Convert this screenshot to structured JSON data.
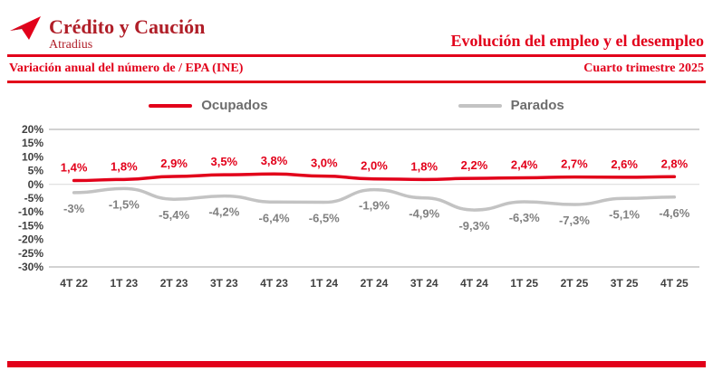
{
  "brand": {
    "name": "Crédito y Caución",
    "subname": "Atradius"
  },
  "header": {
    "title": "Evolución del empleo y el desempleo",
    "left_caption": "Variación anual del número de / EPA (INE)",
    "right_caption": "Cuarto trimestre 2025"
  },
  "legend": {
    "items": [
      {
        "label": "Ocupados",
        "color": "#e2001a"
      },
      {
        "label": "Parados",
        "color": "#c3c3c3"
      }
    ]
  },
  "chart_data": {
    "type": "line",
    "title": "Evolución del empleo y el desempleo",
    "categories": [
      "4T 22",
      "1T 23",
      "2T 23",
      "3T 23",
      "4T 23",
      "1T 24",
      "2T 24",
      "3T 24",
      "4T 24",
      "1T 25",
      "2T 25",
      "3T 25",
      "4T 25"
    ],
    "series": [
      {
        "name": "Ocupados",
        "color": "#e2001a",
        "values": [
          1.4,
          1.8,
          2.9,
          3.5,
          3.8,
          3.0,
          2.0,
          1.8,
          2.2,
          2.4,
          2.7,
          2.6,
          2.8
        ],
        "labels": [
          "1,4%",
          "1,8%",
          "2,9%",
          "3,5%",
          "3,8%",
          "3,0%",
          "2,0%",
          "1,8%",
          "2,2%",
          "2,4%",
          "2,7%",
          "2,6%",
          "2,8%"
        ]
      },
      {
        "name": "Parados",
        "color": "#c3c3c3",
        "values": [
          -3.0,
          -1.5,
          -5.4,
          -4.2,
          -6.4,
          -6.5,
          -1.9,
          -4.9,
          -9.3,
          -6.3,
          -7.3,
          -5.1,
          -4.6
        ],
        "labels": [
          "-3%",
          "-1,5%",
          "-5,4%",
          "-4,2%",
          "-6,4%",
          "-6,5%",
          "-1,9%",
          "-4,9%",
          "-9,3%",
          "-6,3%",
          "-7,3%",
          "-5,1%",
          "-4,6%"
        ]
      }
    ],
    "ylim": [
      -30,
      20
    ],
    "ytick_step": 5,
    "yticks": [
      "20%",
      "15%",
      "10%",
      "5%",
      "0%",
      "-5%",
      "-10%",
      "-15%",
      "-20%",
      "-25%",
      "-30%"
    ],
    "grid": false,
    "legend_position": "top"
  },
  "colors": {
    "red": "#e2001a",
    "dark_red": "#b01e28",
    "gray_line": "#c3c3c3",
    "gray_text": "#808080",
    "axis_text": "#404040"
  }
}
